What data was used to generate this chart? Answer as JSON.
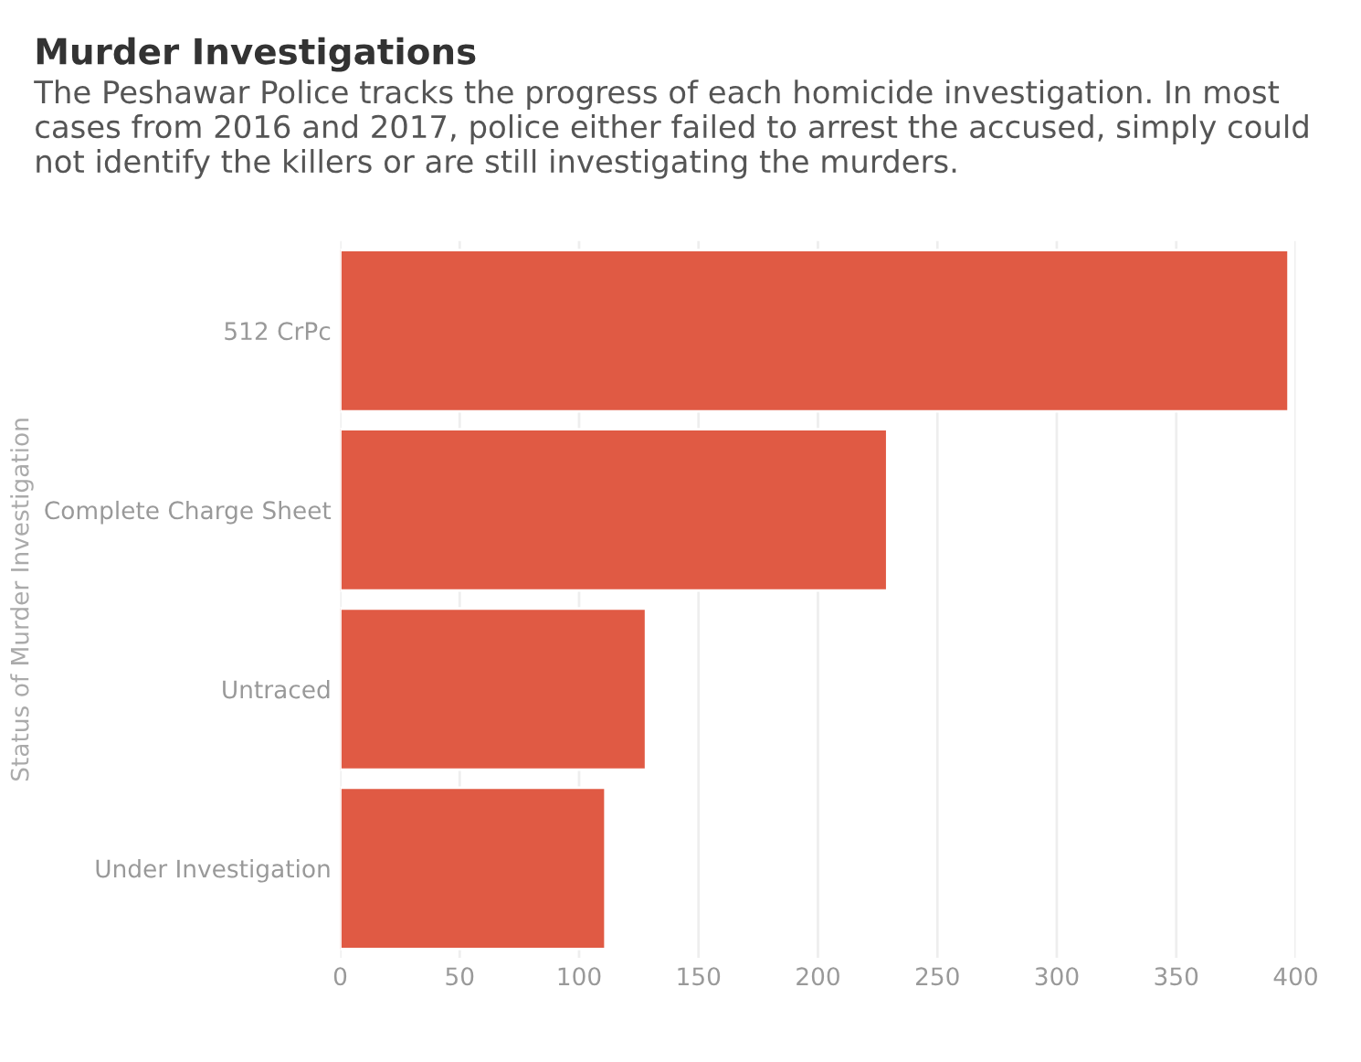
{
  "chart_data": {
    "type": "bar",
    "orientation": "horizontal",
    "title": "Murder Investigations",
    "subtitle": "The Peshawar Police tracks the progress of each homicide investigation. In most cases from 2016 and 2017, police either failed to arrest the accused, simply could not identify the killers or are still investigating the murders.",
    "ylabel": "Status of Murder Investigation",
    "categories": [
      "512 CrPc",
      "Complete Charge Sheet",
      "Untraced",
      "Under Investigation"
    ],
    "values": [
      397,
      229,
      128,
      111
    ],
    "color": "#e05a44",
    "xlim": [
      0,
      400
    ],
    "xticks": [
      0,
      50,
      100,
      150,
      200,
      250,
      300,
      350,
      400
    ],
    "grid": "x"
  }
}
